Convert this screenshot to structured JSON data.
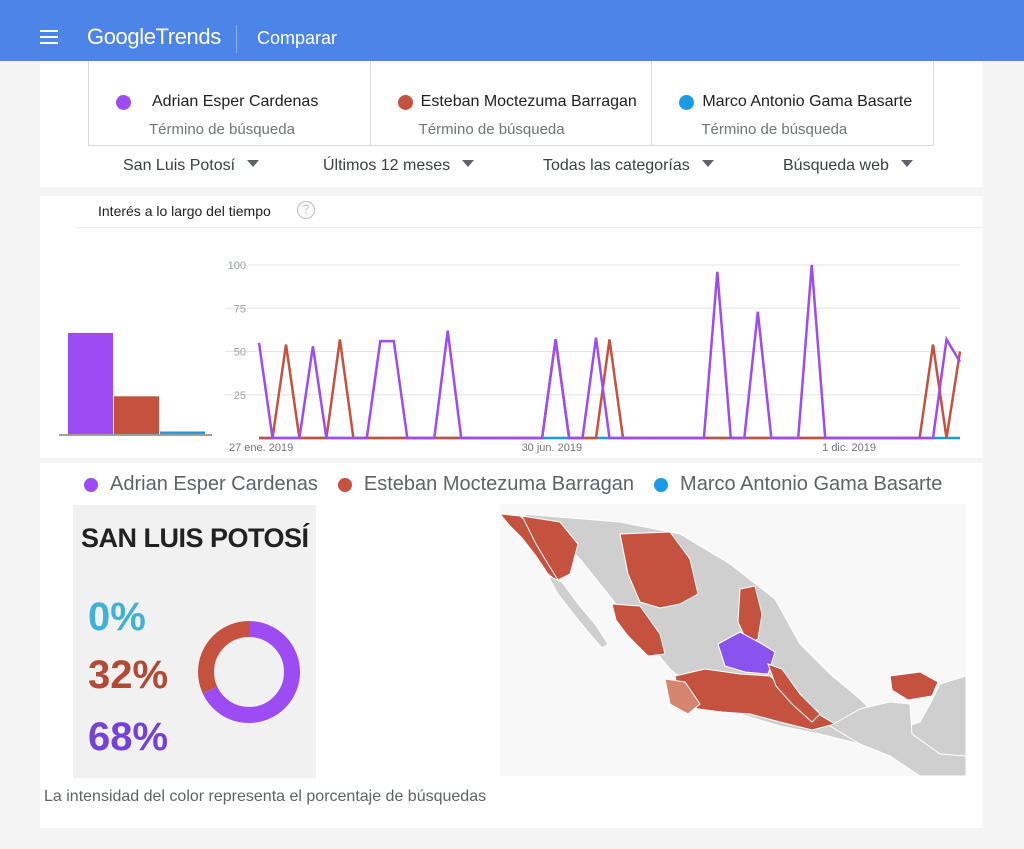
{
  "appbar": {
    "brand": "Google",
    "product": "Trends",
    "title": "Comparar"
  },
  "terms": [
    {
      "name": "Adrian Esper Cardenas",
      "sub": "Término de búsqueda",
      "color": "#9c4cf2"
    },
    {
      "name": "Esteban Moctezuma Barragan",
      "sub": "Término de búsqueda",
      "color": "#c5523f"
    },
    {
      "name": "Marco Antonio Gama Basarte",
      "sub": "Término de búsqueda",
      "color": "#1a9be6"
    }
  ],
  "filters": {
    "region": "San Luis Potosí",
    "period": "Últimos 12 meses",
    "category": "Todas las categorías",
    "type": "Búsqueda web"
  },
  "interest": {
    "title": "Interés a lo largo del tiempo",
    "help": "?"
  },
  "chart_data": [
    {
      "type": "bar",
      "categories": [
        "Adrian Esper Cardenas",
        "Esteban Moctezuma Barragan",
        "Marco Antonio Gama Basarte"
      ],
      "values": [
        58,
        22,
        2
      ],
      "colors": [
        "#9c4cf2",
        "#c5523f",
        "#1a9be6"
      ]
    },
    {
      "type": "line",
      "x": [
        0,
        1,
        2,
        3,
        4,
        5,
        6,
        7,
        8,
        9,
        10,
        11,
        12,
        13,
        14,
        15,
        16,
        17,
        18,
        19,
        20,
        21,
        22,
        23,
        24,
        25,
        26,
        27,
        28,
        29,
        30,
        31,
        32,
        33,
        34,
        35,
        36,
        37,
        38,
        39,
        40,
        41,
        42,
        43,
        44,
        45,
        46,
        47,
        48,
        49,
        50,
        51,
        52
      ],
      "x_tick_labels": [
        {
          "index": 0,
          "label": "27 ene. 2019"
        },
        {
          "index": 22,
          "label": "30 jun. 2019"
        },
        {
          "index": 44,
          "label": "1 dic. 2019"
        }
      ],
      "ylim": [
        0,
        100
      ],
      "y_ticks": [
        25,
        50,
        75,
        100
      ],
      "series": [
        {
          "name": "Adrian Esper Cardenas",
          "color": "#9c4cf2",
          "values": [
            55,
            0,
            0,
            0,
            53,
            0,
            0,
            0,
            0,
            56,
            56,
            0,
            0,
            0,
            62,
            0,
            0,
            0,
            0,
            0,
            0,
            0,
            57,
            0,
            0,
            58,
            0,
            0,
            0,
            0,
            0,
            0,
            0,
            0,
            96,
            0,
            0,
            73,
            0,
            0,
            0,
            100,
            0,
            0,
            0,
            0,
            0,
            0,
            0,
            0,
            0,
            57,
            44
          ]
        },
        {
          "name": "Esteban Moctezuma Barragan",
          "color": "#c5523f",
          "values": [
            0,
            0,
            54,
            0,
            0,
            0,
            57,
            0,
            0,
            0,
            0,
            0,
            0,
            0,
            0,
            0,
            0,
            0,
            0,
            0,
            0,
            0,
            57,
            0,
            0,
            0,
            57,
            0,
            0,
            0,
            0,
            0,
            0,
            0,
            0,
            0,
            0,
            0,
            0,
            0,
            0,
            0,
            0,
            0,
            0,
            0,
            0,
            0,
            0,
            0,
            54,
            0,
            50
          ]
        },
        {
          "name": "Marco Antonio Gama Basarte",
          "color": "#1a9be6",
          "values": [
            0,
            0,
            0,
            0,
            0,
            0,
            0,
            0,
            0,
            0,
            0,
            0,
            0,
            0,
            0,
            0,
            0,
            0,
            0,
            0,
            0,
            0,
            0,
            0,
            0,
            0,
            0,
            0,
            0,
            0,
            0,
            0,
            0,
            0,
            0,
            0,
            0,
            0,
            0,
            0,
            0,
            0,
            0,
            0,
            0,
            0,
            0,
            0,
            0,
            0,
            0,
            0,
            0
          ]
        }
      ]
    },
    {
      "type": "pie",
      "categories": [
        "Marco Antonio Gama Basarte",
        "Esteban Moctezuma Barragan",
        "Adrian Esper Cardenas"
      ],
      "values": [
        0,
        32,
        68
      ],
      "colors": [
        "#1a9be6",
        "#c5523f",
        "#9c4cf2"
      ]
    }
  ],
  "map": {
    "summary_title": "SAN LUIS POTOSÍ",
    "pct_blue": "0%",
    "pct_red": "32%",
    "pct_purple": "68%",
    "footnote": "La intensidad del color representa el porcentaje de búsquedas",
    "colors": {
      "neutral": "#cfcfcf",
      "red": "#c5523f",
      "light_red": "#d4846f",
      "purple": "#8a52ee"
    }
  }
}
